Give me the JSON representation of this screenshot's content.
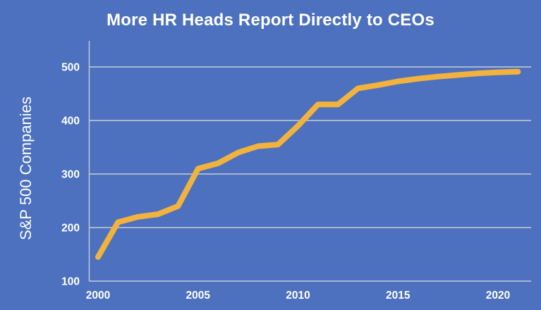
{
  "chart": {
    "title": "More HR Heads Report Directly to CEOs",
    "ylabel": "S&P 500 Companies"
  },
  "chart_data": {
    "type": "line",
    "title": "More HR Heads Report Directly to CEOs",
    "xlabel": "",
    "ylabel": "S&P 500 Companies",
    "x": [
      2000,
      2001,
      2002,
      2003,
      2004,
      2005,
      2006,
      2007,
      2008,
      2009,
      2010,
      2011,
      2012,
      2013,
      2014,
      2015,
      2016,
      2017,
      2018,
      2019,
      2020,
      2021
    ],
    "values": [
      145,
      210,
      220,
      225,
      240,
      310,
      320,
      340,
      352,
      355,
      390,
      430,
      430,
      460,
      466,
      473,
      478,
      482,
      485,
      488,
      490,
      491
    ],
    "x_ticks": [
      2000,
      2005,
      2010,
      2015,
      2020
    ],
    "y_ticks": [
      100,
      200,
      300,
      400,
      500
    ],
    "xlim": [
      2000,
      2021
    ],
    "ylim": [
      100,
      500
    ],
    "grid": "horizontal",
    "legend": "none",
    "colors": {
      "background": "#4D71BE",
      "line": "#F1B33E",
      "gridline": "#C7CDD9",
      "text": "#FFFFFF"
    }
  }
}
